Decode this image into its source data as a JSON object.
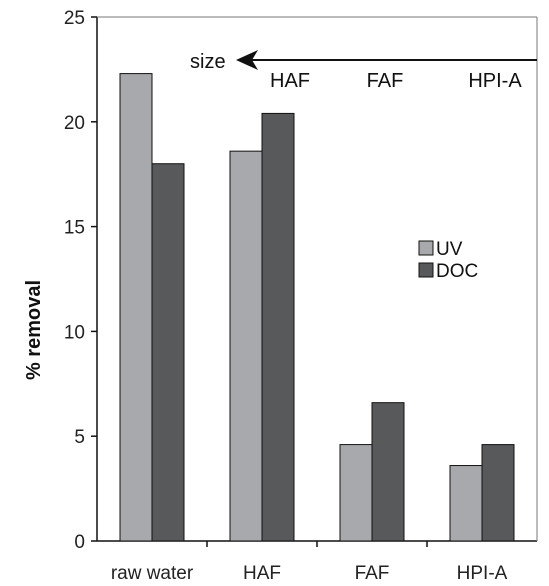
{
  "chart_data": {
    "type": "bar",
    "categories": [
      "raw water",
      "HAF",
      "FAF",
      "HPI-A"
    ],
    "series": [
      {
        "name": "UV",
        "values": [
          22.3,
          18.6,
          4.6,
          3.6
        ],
        "color": "#a7a9ac"
      },
      {
        "name": "DOC",
        "values": [
          18.0,
          20.4,
          6.6,
          4.6
        ],
        "color": "#58595b"
      }
    ],
    "ylabel": "% removal",
    "xlabel": "",
    "ylim": [
      0,
      25
    ],
    "yticks": [
      "0",
      "5",
      "10",
      "15",
      "20",
      "25"
    ],
    "legend_position": "right",
    "grid": false,
    "annotation": {
      "arrow_label": "size",
      "labels": [
        "HAF",
        "FAF",
        "HPI-A"
      ]
    }
  }
}
